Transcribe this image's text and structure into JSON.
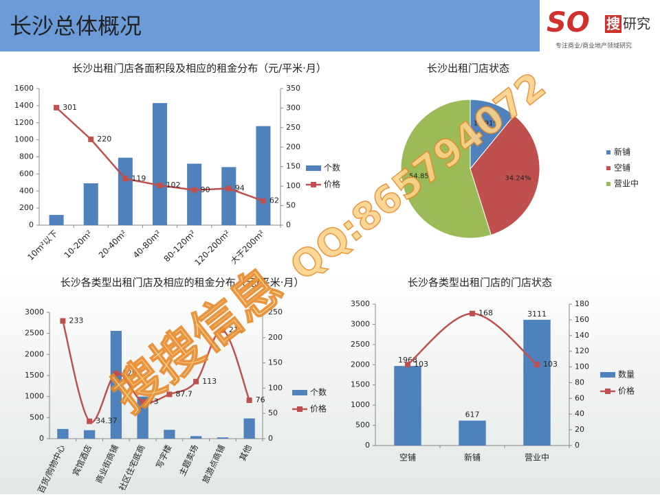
{
  "header": {
    "title": "长沙总体概况",
    "logo_mark": "SO",
    "logo_search": "搜",
    "logo_research": "研究",
    "tagline": "专注商业/商业地产领域研究"
  },
  "watermarks": [
    "QQ:865794072",
    "搜搜信息"
  ],
  "chart_data": [
    {
      "type": "combo",
      "title": "长沙出租门店各面积段及相应的租金分布（元/平米·月）",
      "categories": [
        "10m²以下",
        "10-20m²",
        "20-40m²",
        "40-80m²",
        "80-120m²",
        "120-200m²",
        "大于200m²"
      ],
      "series": [
        {
          "name": "个数",
          "type": "bar",
          "color": "#4f81bd",
          "values": [
            120,
            490,
            790,
            1430,
            720,
            680,
            1160
          ]
        },
        {
          "name": "价格",
          "type": "line",
          "axis": "y2",
          "color": "#c0504d",
          "data_labels": true,
          "values": [
            301,
            220,
            119,
            102,
            90,
            94,
            62
          ]
        }
      ],
      "ylim": [
        0,
        1600
      ],
      "yticks": [
        0,
        200,
        400,
        600,
        800,
        1000,
        1200,
        1400,
        1600
      ],
      "y2lim": [
        0,
        350
      ],
      "y2ticks": [
        0,
        50,
        100,
        150,
        200,
        250,
        300,
        350
      ],
      "legend": "right"
    },
    {
      "type": "pie",
      "title": "长沙出租门店状态",
      "categories": [
        "新铺",
        "空铺",
        "营业中"
      ],
      "values": [
        10.91,
        34.24,
        54.85
      ],
      "value_labels": [
        "10.91%",
        "34.24%",
        "54.85%"
      ],
      "colors": [
        "#4f81bd",
        "#c0504d",
        "#9bbb59"
      ],
      "legend": "right"
    },
    {
      "type": "combo",
      "title": "长沙各类型出租门店及相应的租金分布（元/平米·月）",
      "categories": [
        "百货/购物中心",
        "宾馆酒店",
        "商业街商铺",
        "社区住宅底商",
        "写字楼",
        "主题卖场",
        "旅游点商铺",
        "其他"
      ],
      "series": [
        {
          "name": "个数",
          "type": "bar",
          "color": "#4f81bd",
          "values": [
            230,
            200,
            2560,
            1000,
            210,
            60,
            30,
            480
          ]
        },
        {
          "name": "价格",
          "type": "line",
          "axis": "y2",
          "color": "#c0504d",
          "smooth": true,
          "data_labels": true,
          "values": [
            233,
            34.37,
            129,
            73,
            87.7,
            113,
            215,
            76
          ]
        }
      ],
      "ylim": [
        0,
        3000
      ],
      "yticks": [
        0,
        500,
        1000,
        1500,
        2000,
        2500,
        3000
      ],
      "y2lim": [
        0,
        250
      ],
      "y2ticks": [
        0,
        50,
        100,
        150,
        200,
        250
      ],
      "legend": "right"
    },
    {
      "type": "combo",
      "title": "长沙各类型出租门店的门店状态",
      "categories": [
        "空铺",
        "新铺",
        "营业中"
      ],
      "series": [
        {
          "name": "数量",
          "type": "bar",
          "color": "#4f81bd",
          "data_labels": true,
          "values": [
            1968,
            617,
            3111
          ]
        },
        {
          "name": "价格",
          "type": "line",
          "axis": "y2",
          "color": "#c0504d",
          "smooth": true,
          "data_labels": true,
          "values": [
            103,
            168,
            103
          ]
        }
      ],
      "ylim": [
        0,
        3500
      ],
      "yticks": [
        0,
        500,
        1000,
        1500,
        2000,
        2500,
        3000,
        3500
      ],
      "y2lim": [
        0,
        180
      ],
      "y2ticks": [
        0,
        20,
        40,
        60,
        80,
        100,
        120,
        140,
        160,
        180
      ],
      "legend": "right"
    }
  ]
}
